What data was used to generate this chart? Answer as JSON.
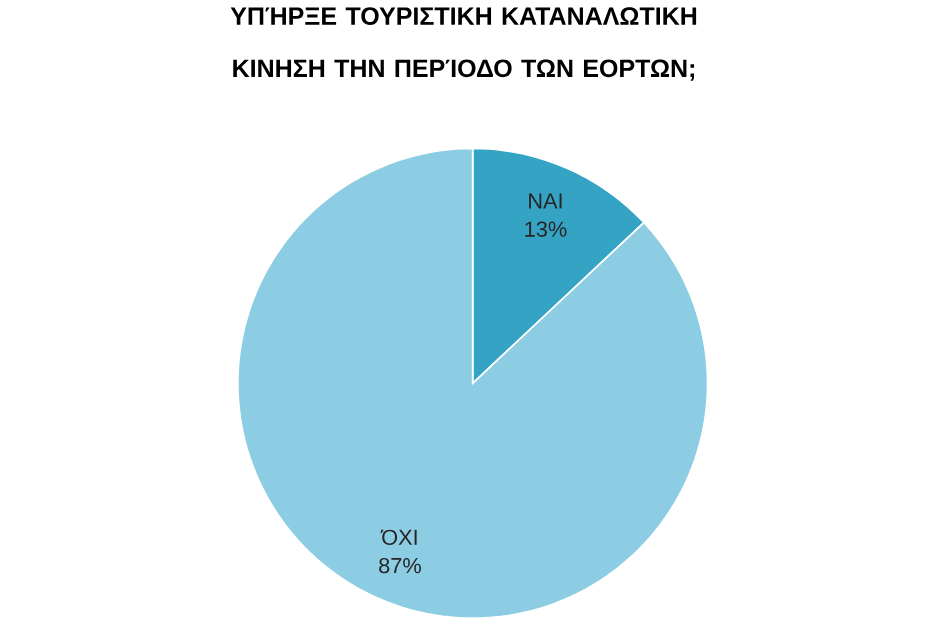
{
  "chart_data": {
    "type": "pie",
    "title": "ΥΠΉΡΞΕ ΤΟΥΡΙΣΤΙΚΗ ΚΑΤΑΝΑΛΩΤΙΚΗ ΚΙΝΗΣΗ ΤΗΝ ΠΕΡΊΟΔΟ ΤΩΝ ΕΟΡΤΩΝ;",
    "categories": [
      "ΝΑΙ",
      "ΌΧΙ"
    ],
    "values": [
      13,
      87
    ],
    "colors": [
      "#35a3c4",
      "#8ccde3"
    ],
    "value_labels": [
      "13%",
      "87%"
    ]
  }
}
